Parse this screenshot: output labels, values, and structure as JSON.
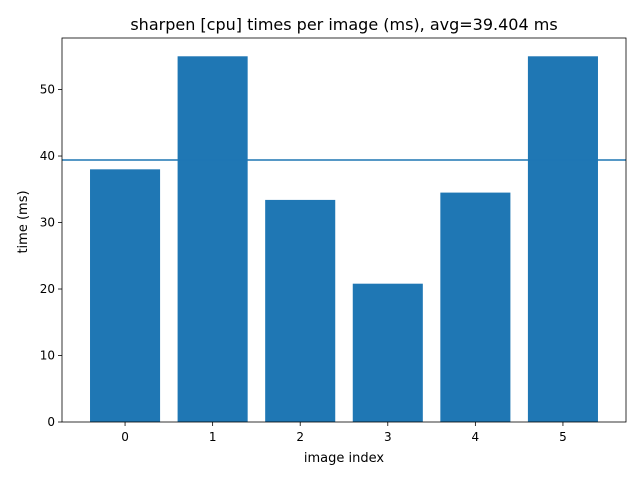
{
  "chart_data": {
    "type": "bar",
    "title": "sharpen [cpu] times per image (ms), avg=39.404 ms",
    "xlabel": "image index",
    "ylabel": "time (ms)",
    "categories": [
      "0",
      "1",
      "2",
      "3",
      "4",
      "5"
    ],
    "values": [
      38.0,
      55.0,
      33.4,
      20.8,
      34.5,
      55.0
    ],
    "average_line": 39.404,
    "ylim": [
      0,
      57.75
    ],
    "xlim": [
      -0.72,
      5.72
    ],
    "yticks": [
      0,
      10,
      20,
      30,
      40,
      50
    ],
    "grid": false,
    "colors": {
      "bar": "#1f77b4",
      "avg_line": "#1f77b4",
      "axis": "#000000"
    }
  }
}
